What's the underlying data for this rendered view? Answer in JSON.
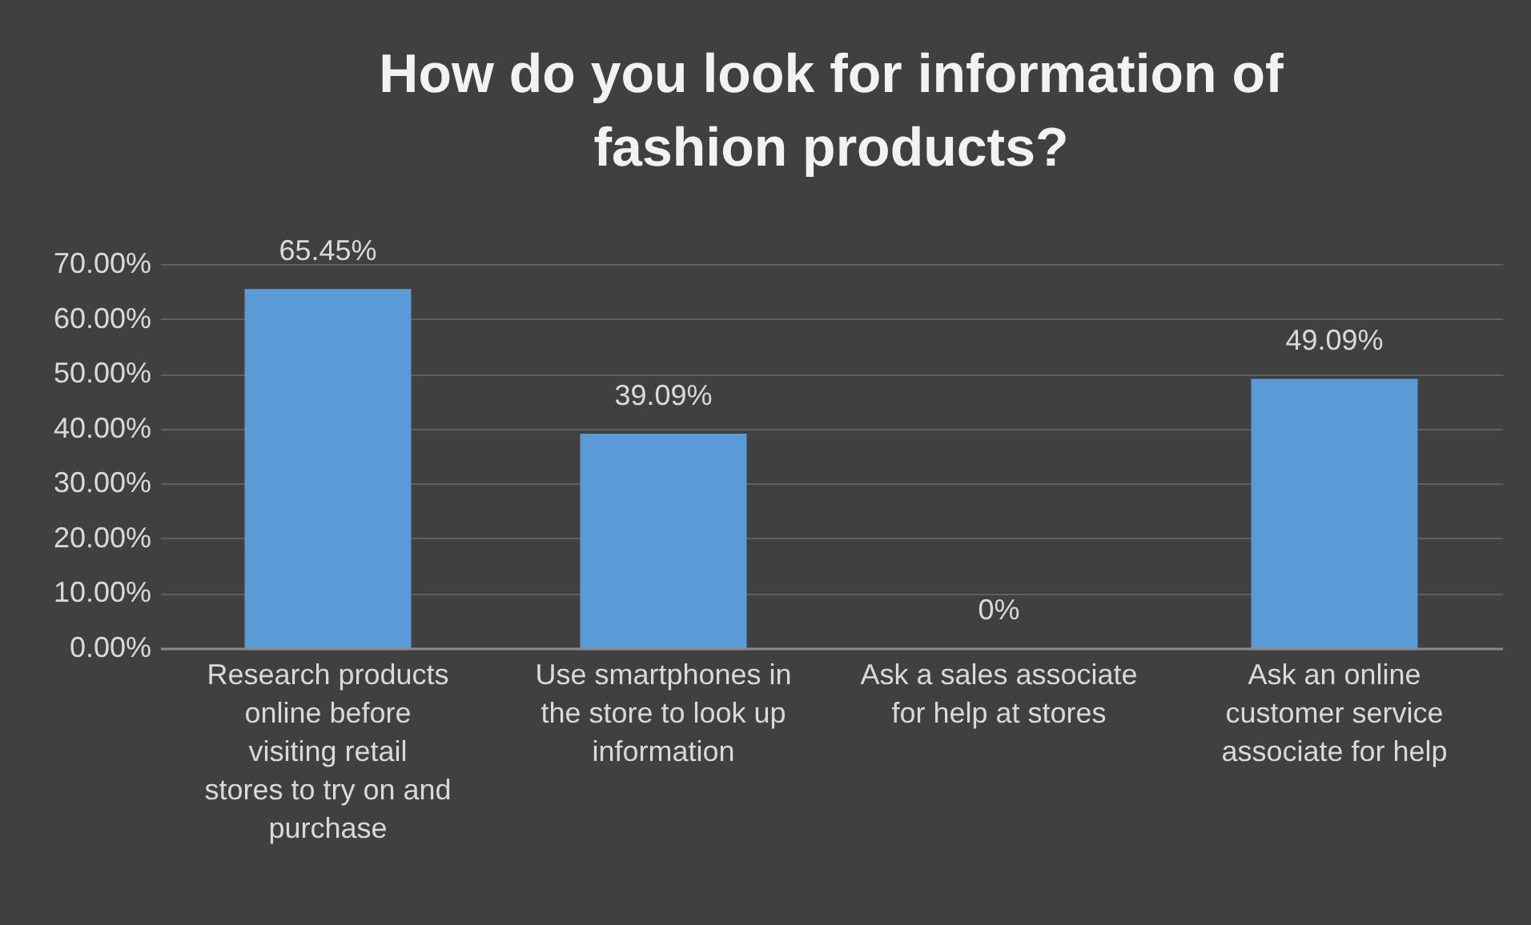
{
  "chart_data": {
    "type": "bar",
    "title": "How do you look for information of fashion products?",
    "categories": [
      "Research products online before visiting retail stores to try on and purchase",
      "Use smartphones in the store to look up information",
      "Ask a sales associate for help at stores",
      "Ask an online customer service associate for help"
    ],
    "values": [
      65.45,
      39.09,
      0,
      49.09
    ],
    "value_labels": [
      "65.45%",
      "39.09%",
      "0%",
      "49.09%"
    ],
    "color": "#5b9bd5",
    "ylim": [
      0,
      70
    ],
    "yticks": [
      {
        "value": 0,
        "label": "0.00%"
      },
      {
        "value": 10,
        "label": "10.00%"
      },
      {
        "value": 20,
        "label": "20.00%"
      },
      {
        "value": 30,
        "label": "30.00%"
      },
      {
        "value": 40,
        "label": "40.00%"
      },
      {
        "value": 50,
        "label": "50.00%"
      },
      {
        "value": 60,
        "label": "60.00%"
      },
      {
        "value": 70,
        "label": "70.00%"
      }
    ],
    "grid": "y"
  }
}
